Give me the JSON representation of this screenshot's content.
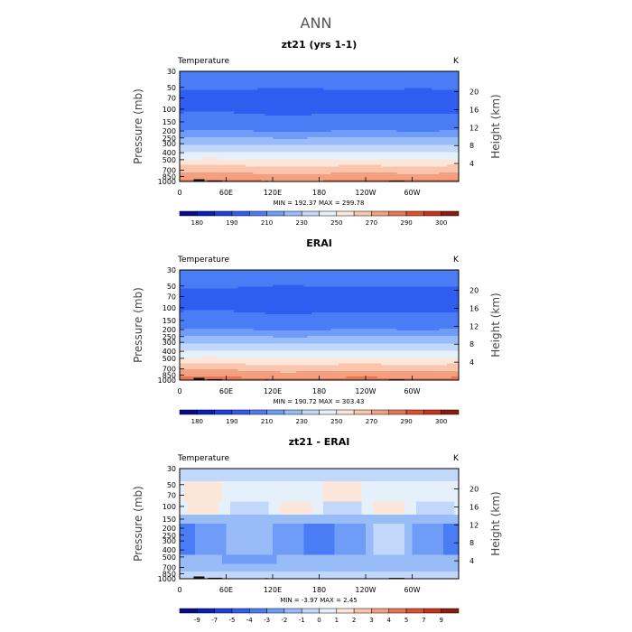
{
  "figure_title": "ANN",
  "colors": {
    "temp_scale": [
      "#0a0a8c",
      "#0b1fb4",
      "#1e3ddc",
      "#2e5df0",
      "#4a7df5",
      "#6f9cf7",
      "#98bcf8",
      "#c2d8fa",
      "#e6f0fb",
      "#fce6da",
      "#f9c5ad",
      "#f3a081",
      "#ea7552",
      "#df4f2c",
      "#c8331a",
      "#8c1b0a"
    ],
    "diff_scale": [
      "#0a0a8c",
      "#0b1fb4",
      "#1e3ddc",
      "#2e5df0",
      "#4a7df5",
      "#6f9cf7",
      "#98bcf8",
      "#c2d8fa",
      "#e6f0fb",
      "#fce6da",
      "#f9c5ad",
      "#f3a081",
      "#ea7552",
      "#df4f2c",
      "#c8331a",
      "#8c1b0a"
    ],
    "topography": "#111111"
  },
  "chart_data": [
    {
      "type": "contour",
      "title": "zt21 (yrs 1-1)",
      "variable_label": "Temperature",
      "units": "K",
      "ylabel": "Pressure (mb)",
      "ylabel_right": "Height (km)",
      "x_ticks": [
        "0",
        "60E",
        "120E",
        "180",
        "120W",
        "60W"
      ],
      "x_tick_lon": [
        0,
        60,
        120,
        180,
        240,
        300
      ],
      "xlim": [
        0,
        360
      ],
      "y_ticks": [
        "30",
        "50",
        "70",
        "100",
        "150",
        "200",
        "250",
        "300",
        "400",
        "500",
        "700",
        "850",
        "1000"
      ],
      "y_tick_values": [
        30,
        50,
        70,
        100,
        150,
        200,
        250,
        300,
        400,
        500,
        700,
        850,
        1000
      ],
      "ylim": [
        30,
        1000
      ],
      "height_ticks": [
        "4",
        "8",
        "12",
        "16",
        "20"
      ],
      "height_tick_values": [
        4,
        8,
        12,
        16,
        20
      ],
      "stats": "MIN = 192.37   MAX = 299.78",
      "levels": [
        180,
        190,
        200,
        210,
        220,
        230,
        240,
        250,
        260,
        270,
        280,
        290,
        300
      ],
      "colorbar_labels": [
        "180",
        "190",
        "210",
        "230",
        "250",
        "270",
        "290",
        "300"
      ],
      "field": "temperature",
      "color_key": "temp_scale"
    },
    {
      "type": "contour",
      "title": "ERAI",
      "variable_label": "Temperature",
      "units": "K",
      "ylabel": "Pressure (mb)",
      "ylabel_right": "Height (km)",
      "x_ticks": [
        "0",
        "60E",
        "120E",
        "180",
        "120W",
        "60W"
      ],
      "x_tick_lon": [
        0,
        60,
        120,
        180,
        240,
        300
      ],
      "xlim": [
        0,
        360
      ],
      "y_ticks": [
        "30",
        "50",
        "70",
        "100",
        "150",
        "200",
        "250",
        "300",
        "400",
        "500",
        "700",
        "850",
        "1000"
      ],
      "y_tick_values": [
        30,
        50,
        70,
        100,
        150,
        200,
        250,
        300,
        400,
        500,
        700,
        850,
        1000
      ],
      "ylim": [
        30,
        1000
      ],
      "height_ticks": [
        "4",
        "8",
        "12",
        "16",
        "20"
      ],
      "height_tick_values": [
        4,
        8,
        12,
        16,
        20
      ],
      "stats": "MIN = 190.72   MAX = 303.43",
      "levels": [
        180,
        190,
        200,
        210,
        220,
        230,
        240,
        250,
        260,
        270,
        280,
        290,
        300
      ],
      "colorbar_labels": [
        "180",
        "190",
        "210",
        "230",
        "250",
        "270",
        "290",
        "300"
      ],
      "field": "temperature",
      "color_key": "temp_scale"
    },
    {
      "type": "contour",
      "title": "zt21 - ERAI",
      "variable_label": "Temperature",
      "units": "K",
      "ylabel": "Pressure (mb)",
      "ylabel_right": "Height (km)",
      "x_ticks": [
        "0",
        "60E",
        "120E",
        "180",
        "120W",
        "60W"
      ],
      "x_tick_lon": [
        0,
        60,
        120,
        180,
        240,
        300
      ],
      "xlim": [
        0,
        360
      ],
      "y_ticks": [
        "30",
        "50",
        "70",
        "100",
        "150",
        "200",
        "250",
        "300",
        "400",
        "500",
        "700",
        "850",
        "1000"
      ],
      "y_tick_values": [
        30,
        50,
        70,
        100,
        150,
        200,
        250,
        300,
        400,
        500,
        700,
        850,
        1000
      ],
      "ylim": [
        30,
        1000
      ],
      "height_ticks": [
        "4",
        "8",
        "12",
        "16",
        "20"
      ],
      "height_tick_values": [
        4,
        8,
        12,
        16,
        20
      ],
      "stats": "MIN =   -3.97   MAX =    2.45",
      "levels": [
        -9,
        -7,
        -5,
        -4,
        -3,
        -2,
        -1,
        0,
        1,
        2,
        3,
        4,
        5,
        7,
        9
      ],
      "colorbar_labels": [
        "-9",
        "-7",
        "-5",
        "-4",
        "-3",
        "-2",
        "-1",
        "0",
        "1",
        "2",
        "3",
        "4",
        "5",
        "7",
        "9"
      ],
      "field": "difference",
      "color_key": "diff_scale"
    }
  ]
}
